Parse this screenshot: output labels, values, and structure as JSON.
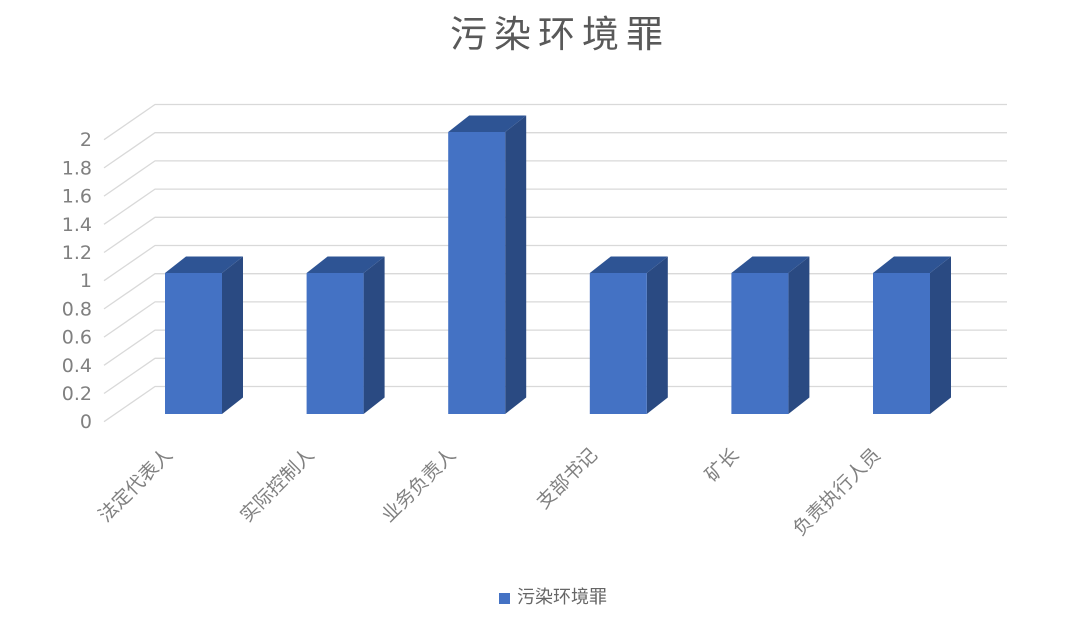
{
  "chart_data": {
    "type": "bar",
    "subtype": "3d-clustered-column",
    "title": "污染环境罪",
    "categories": [
      "法定代表人",
      "实际控制人",
      "业务负责人",
      "支部书记",
      "矿长",
      "负责执行人员"
    ],
    "series": [
      {
        "name": "污染环境罪",
        "values": [
          1,
          1,
          2,
          1,
          1,
          1
        ]
      }
    ],
    "xlabel": "",
    "ylabel": "",
    "ylim": [
      0,
      2
    ],
    "ytick_step": 0.2,
    "yticks": [
      "0",
      "0.2",
      "0.4",
      "0.6",
      "0.8",
      "1",
      "1.2",
      "1.4",
      "1.6",
      "1.8",
      "2"
    ],
    "grid": true,
    "legend": {
      "position": "bottom",
      "label": "污染环境罪"
    },
    "colors": {
      "bar_front": "#4472C4",
      "bar_top": "#2E5494",
      "bar_side": "#2A4A82",
      "gridline": "#D9D9D9",
      "tick_text": "#808080",
      "category_text": "#808080",
      "title_text": "#595959",
      "legend_text": "#666666"
    }
  }
}
